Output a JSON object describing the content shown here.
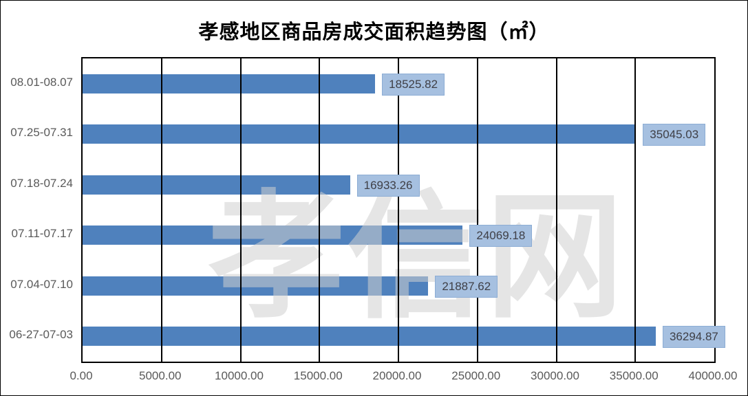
{
  "title": "孝感地区商品房成交面积趋势图（㎡）",
  "watermark_text": "孝信网",
  "chart_data": {
    "type": "bar",
    "orientation": "horizontal",
    "title": "孝感地区商品房成交面积趋势图（㎡）",
    "categories": [
      "08.01-08.07",
      "07.25-07.31",
      "07.18-07.24",
      "07.11-07.17",
      "07.04-07.10",
      "06-27-07-03"
    ],
    "values": [
      18525.82,
      35045.03,
      16933.26,
      24069.18,
      21887.62,
      36294.87
    ],
    "value_labels": [
      "18525.82",
      "35045.03",
      "16933.26",
      "24069.18",
      "21887.62",
      "36294.87"
    ],
    "xlabel": "",
    "ylabel": "",
    "xlim": [
      0,
      40000
    ],
    "x_tick_step": 5000,
    "x_tick_labels": [
      "0.00",
      "5000.00",
      "10000.00",
      "15000.00",
      "20000.00",
      "25000.00",
      "30000.00",
      "35000.00",
      "40000.00"
    ],
    "grid": "vertical",
    "legend": "none",
    "colors": {
      "bar_fill": "#4F81BD",
      "label_box_fill": "#A6C0E0",
      "label_box_border": "#8BACD4",
      "label_text": "#3F3F46",
      "axis_text": "#595959",
      "gridline": "#000000",
      "plot_border": "#000000",
      "watermark": "#E3E3E3"
    }
  }
}
